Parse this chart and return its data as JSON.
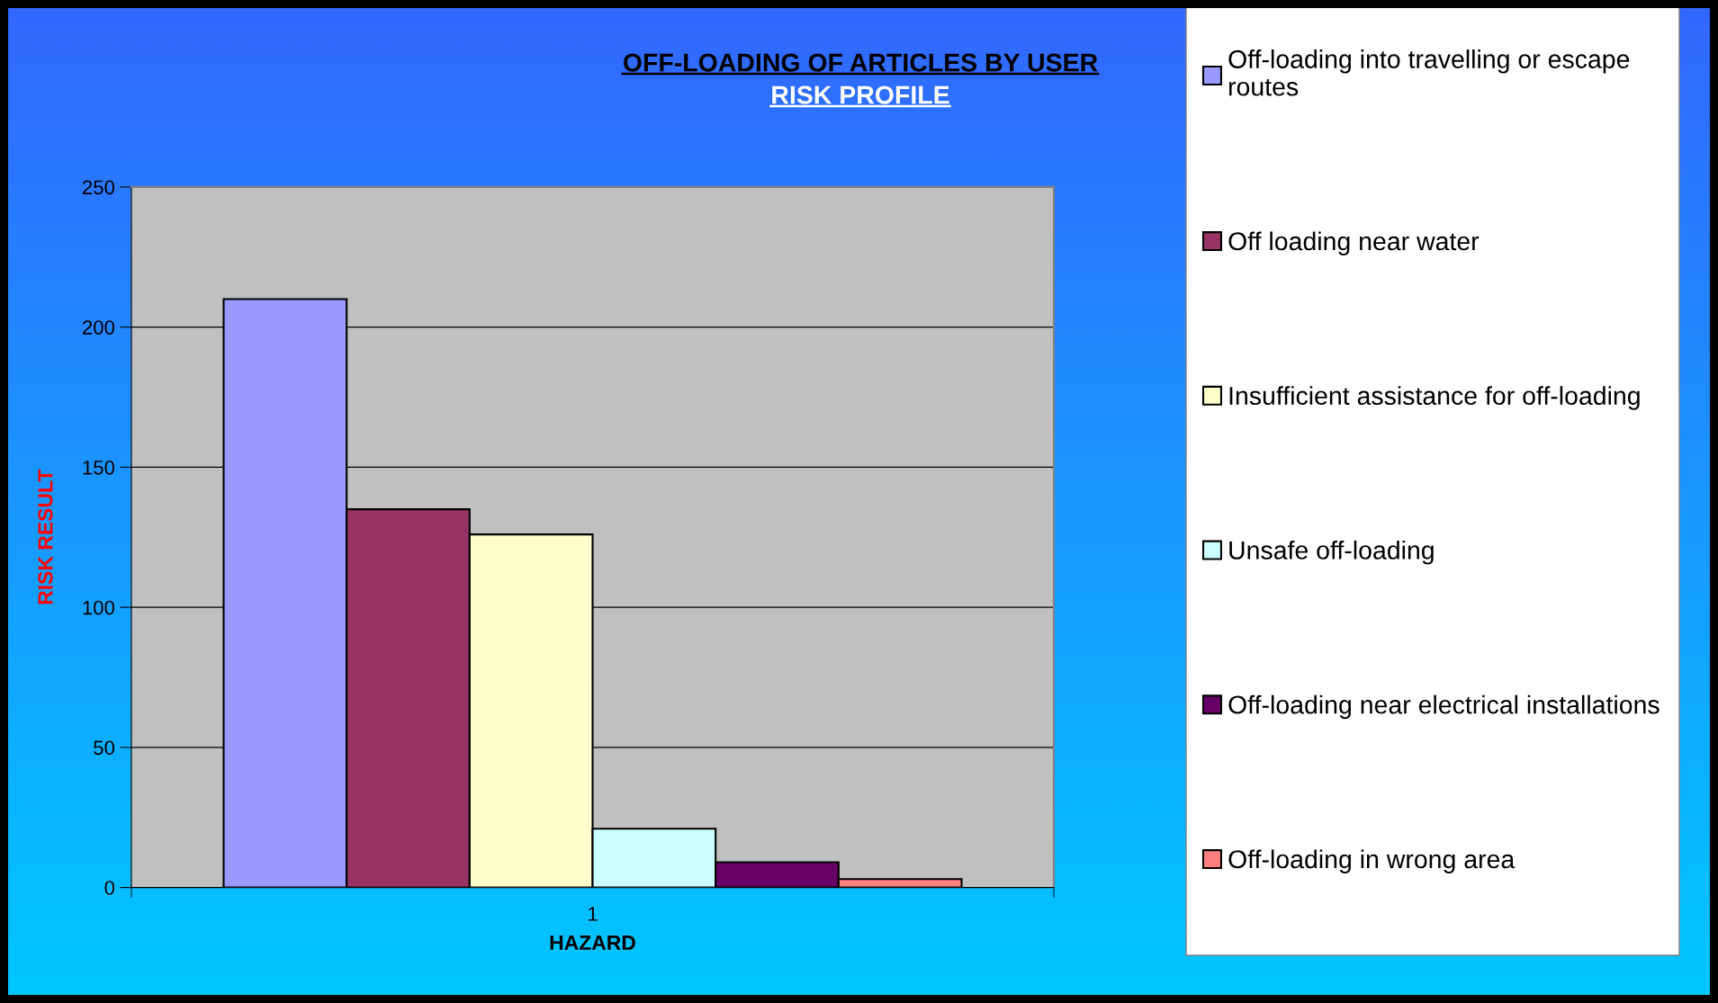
{
  "chart_data": {
    "type": "bar",
    "title": "OFF-LOADING OF ARTICLES BY USER",
    "subtitle": "RISK PROFILE",
    "xlabel": "HAZARD",
    "ylabel": "RISK RESULT",
    "categories": [
      "1"
    ],
    "series": [
      {
        "name": "Off-loading into travelling or escape routes",
        "color": "#9999ff",
        "values": [
          210
        ]
      },
      {
        "name": "Off loading near water",
        "color": "#993366",
        "values": [
          135
        ]
      },
      {
        "name": "Insufficient assistance for off-loading",
        "color": "#ffffcc",
        "values": [
          126
        ]
      },
      {
        "name": "Unsafe off-loading",
        "color": "#ccffff",
        "values": [
          21
        ]
      },
      {
        "name": "Off-loading near electrical installations",
        "color": "#660066",
        "values": [
          9
        ]
      },
      {
        "name": "Off-loading in wrong area",
        "color": "#ff8080",
        "values": [
          3
        ]
      }
    ],
    "ylim": [
      0,
      250
    ],
    "yticks": [
      0,
      50,
      100,
      150,
      200,
      250
    ],
    "grid": "y",
    "legend": "right"
  }
}
